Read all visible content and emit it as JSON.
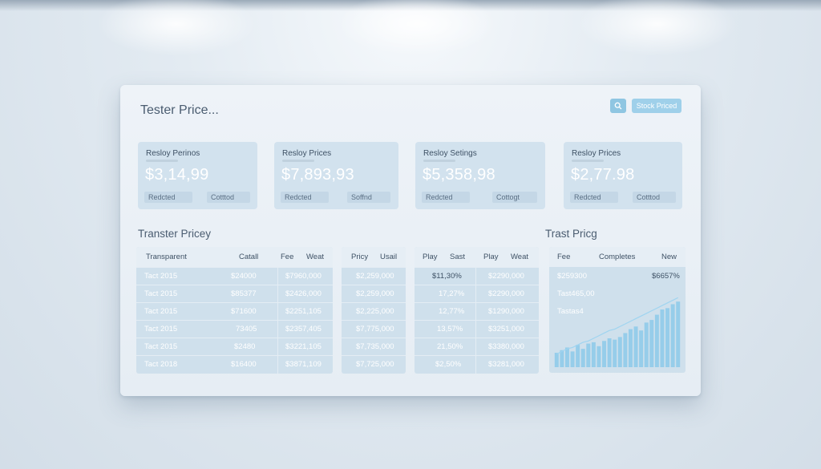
{
  "header": {
    "title": "Tester Price...",
    "search_icon": "search-icon",
    "action_label": "Stock Priced"
  },
  "cards": [
    {
      "label": "Resloy Perinos",
      "value": "$3,14,99",
      "chip_left": "Redcted",
      "chip_right": "Cotttod"
    },
    {
      "label": "Resloy Prices",
      "value": "$7,893,93",
      "chip_left": "Redcted",
      "chip_right": "Soffnd"
    },
    {
      "label": "Resloy Setings",
      "value": "$5,358,98",
      "chip_left": "Redcted",
      "chip_right": "Cottogt"
    },
    {
      "label": "Resloy Prices",
      "value": "$2,77.98",
      "chip_left": "Redcted",
      "chip_right": "Cotttod"
    }
  ],
  "sections": {
    "left_title": "Transter Pricey",
    "right_title": "Trast Pricg"
  },
  "table1": {
    "headers": [
      "Transparent",
      "Catall",
      "Fee",
      "Weat"
    ],
    "rows": [
      [
        "Tact 2015",
        "$24000",
        "$7960,000"
      ],
      [
        "Tact 2015",
        "$85377",
        "$2426,000"
      ],
      [
        "Tact 2015",
        "$71600",
        "$2251,105"
      ],
      [
        "Tact 2015",
        "73405",
        "$2357,405"
      ],
      [
        "Tact 2015",
        "$2480",
        "$3221,105"
      ],
      [
        "Tact 2018",
        "$16400",
        "$3871,109"
      ]
    ]
  },
  "table2": {
    "headers": [
      "Pricy",
      "Usail"
    ],
    "rows": [
      "$2,259,000",
      "$2,259,000",
      "$2,225,000",
      "$7,775,000",
      "$7,735,000",
      "$7,725,000"
    ]
  },
  "table3": {
    "headers": [
      "Play",
      "Sast",
      "Play",
      "Weat"
    ],
    "rows": [
      [
        "$11,30%",
        "$2290,000"
      ],
      [
        "17,27%",
        "$2290,000"
      ],
      [
        "12,77%",
        "$1290,000"
      ],
      [
        "13,57%",
        "$3251,000"
      ],
      [
        "21,50%",
        "$3380,000"
      ],
      [
        "$2,50%",
        "$3281,000"
      ]
    ]
  },
  "chart_panel": {
    "headers": [
      "Fee",
      "Completes",
      "New"
    ],
    "stat1_label": "$259300",
    "stat1_value": "$6657%",
    "stat2_label": "Tast465,00",
    "stat3_label": "Tastas4"
  },
  "chart_data": {
    "type": "bar",
    "values": [
      22,
      26,
      30,
      24,
      34,
      28,
      36,
      38,
      32,
      40,
      44,
      42,
      46,
      52,
      58,
      62,
      56,
      68,
      72,
      80,
      88,
      90,
      96,
      100
    ],
    "trend": [
      20,
      24,
      28,
      30,
      34,
      38,
      40,
      44,
      48,
      52,
      56,
      58,
      62,
      66,
      70,
      74,
      78,
      82,
      86,
      90,
      94,
      98,
      102,
      106
    ],
    "colors": {
      "bar": "#8fcbea",
      "line": "#9fd4f0"
    }
  }
}
